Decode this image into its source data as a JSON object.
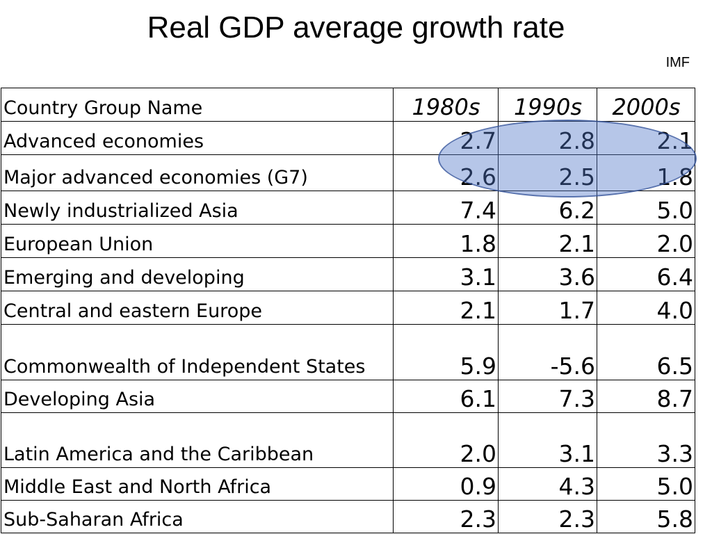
{
  "title": "Real GDP average growth rate",
  "source": "IMF",
  "table": {
    "header": [
      "Country Group Name",
      "1980s",
      "1990s",
      "2000s"
    ],
    "rows": [
      {
        "name": "Advanced economies",
        "values": [
          "2.7",
          "2.8",
          "2.1"
        ]
      },
      {
        "name": "Major advanced economies (G7)",
        "values": [
          "2.6",
          "2.5",
          "1.8"
        ]
      },
      {
        "name": "Newly industrialized Asia",
        "values": [
          "7.4",
          "6.2",
          "5.0"
        ]
      },
      {
        "name": "European Union",
        "values": [
          "1.8",
          "2.1",
          "2.0"
        ]
      },
      {
        "name": "Emerging and developing",
        "values": [
          "3.1",
          "3.6",
          "6.4"
        ]
      },
      {
        "name": "Central and eastern Europe",
        "values": [
          "2.1",
          "1.7",
          "4.0"
        ]
      },
      {
        "name": "Commonwealth of Independent States",
        "values": [
          "5.9",
          "-5.6",
          "6.5"
        ]
      },
      {
        "name": "Developing Asia",
        "values": [
          "6.1",
          "7.3",
          "8.7"
        ]
      },
      {
        "name": "Latin America and the Caribbean",
        "values": [
          "2.0",
          "3.1",
          "3.3"
        ]
      },
      {
        "name": "Middle East and North Africa",
        "values": [
          "0.9",
          "4.3",
          "5.0"
        ]
      },
      {
        "name": "Sub-Saharan Africa",
        "values": [
          "2.3",
          "2.3",
          "5.8"
        ]
      }
    ]
  },
  "highlight": {
    "color": "#5078c8",
    "covers_rows": [
      "Advanced economies",
      "Major advanced economies (G7)"
    ]
  }
}
